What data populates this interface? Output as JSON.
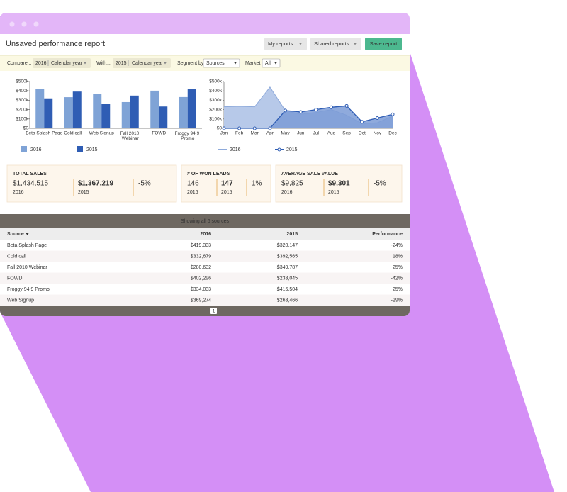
{
  "window": {
    "title": "Unsaved performance report",
    "buttons": [
      "My reports",
      "Shared reports",
      "Save report"
    ]
  },
  "filters": {
    "compare_label": "Compare...",
    "compare_year": "2016",
    "compare_period": "Calendar year",
    "with_label": "With...",
    "with_year": "2015",
    "with_period": "Calendar year",
    "segment_label": "Segment by",
    "segment_value": "Sources",
    "market_label": "Market",
    "market_value": "All"
  },
  "chart_data": [
    {
      "type": "bar",
      "categories": [
        "Beta Splash Page",
        "Cold call",
        "Web Signup",
        "Fall 2010 Webinar",
        "FOWD",
        "Froggy 94.9 Promo"
      ],
      "series": [
        {
          "name": "2016",
          "color": "#7fa3d6",
          "values": [
            419333,
            332679,
            369274,
            280632,
            402296,
            334033
          ]
        },
        {
          "name": "2015",
          "color": "#2f5db4",
          "values": [
            320147,
            392565,
            263466,
            349787,
            233045,
            416504
          ]
        }
      ],
      "ylim": [
        0,
        500000
      ],
      "yticks": [
        {
          "value": 0,
          "label": "$0"
        },
        {
          "value": 100000,
          "label": "$100k"
        },
        {
          "value": 200000,
          "label": "$200k"
        },
        {
          "value": 300000,
          "label": "$300k"
        },
        {
          "value": 400000,
          "label": "$400k"
        },
        {
          "value": 500000,
          "label": "$500k"
        }
      ]
    },
    {
      "type": "area",
      "categories": [
        "Jan",
        "Feb",
        "Mar",
        "Apr",
        "May",
        "Jun",
        "Jul",
        "Aug",
        "Sep",
        "Oct",
        "Nov",
        "Dec"
      ],
      "series": [
        {
          "name": "2016",
          "color": "#8eaadb",
          "values": [
            230000,
            235000,
            230000,
            440000,
            190000,
            150000,
            170000,
            200000,
            140000,
            50000,
            60000,
            130000
          ]
        },
        {
          "name": "2015",
          "color": "#2f5db4",
          "values": [
            0,
            0,
            0,
            0,
            190000,
            175000,
            200000,
            225000,
            240000,
            70000,
            110000,
            150000
          ]
        }
      ],
      "ylim": [
        0,
        500000
      ],
      "yticks": [
        {
          "value": 0,
          "label": "$0"
        },
        {
          "value": 100000,
          "label": "$100k"
        },
        {
          "value": 200000,
          "label": "$200k"
        },
        {
          "value": 300000,
          "label": "$300k"
        },
        {
          "value": 400000,
          "label": "$400k"
        },
        {
          "value": 500000,
          "label": "$500k"
        }
      ]
    }
  ],
  "kpis": [
    {
      "title": "TOTAL SALES",
      "current": "$1,434,515",
      "current_year": "2016",
      "previous": "$1,367,219",
      "previous_year": "2015",
      "change": "-5%"
    },
    {
      "title": "# OF WON LEADS",
      "current": "146",
      "current_year": "2016",
      "previous": "147",
      "previous_year": "2015",
      "change": "1%"
    },
    {
      "title": "AVERAGE SALE VALUE",
      "current": "$9,825",
      "current_year": "2016",
      "previous": "$9,301",
      "previous_year": "2015",
      "change": "-5%"
    }
  ],
  "table": {
    "caption": "Showing all 6 sources",
    "columns": [
      "Source",
      "2016",
      "2015",
      "Performance"
    ],
    "rows": [
      [
        "Beta Splash Page",
        "$419,333",
        "$320,147",
        "-24%"
      ],
      [
        "Cold call",
        "$332,679",
        "$392,565",
        "18%"
      ],
      [
        "Fall 2010 Webinar",
        "$280,632",
        "$349,787",
        "25%"
      ],
      [
        "FOWD",
        "$402,296",
        "$233,045",
        "-42%"
      ],
      [
        "Froggy 94.9 Promo",
        "$334,033",
        "$416,504",
        "25%"
      ],
      [
        "Web Signup",
        "$369,274",
        "$263,466",
        "-29%"
      ]
    ]
  },
  "pagination": [
    "1"
  ]
}
